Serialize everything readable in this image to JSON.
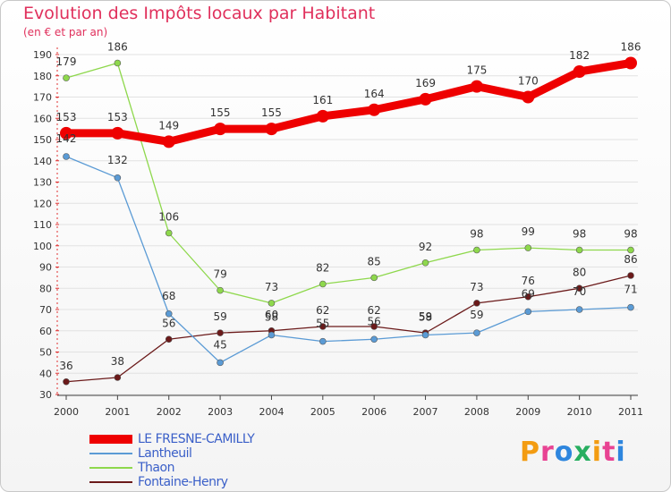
{
  "chart_data": {
    "type": "line",
    "title": "Evolution des Impôts locaux par Habitant",
    "subtitle": "(en € et par an)",
    "xlabel": "",
    "ylabel": "",
    "ylim": [
      30,
      190
    ],
    "yticks": [
      30,
      40,
      50,
      60,
      70,
      80,
      90,
      100,
      110,
      120,
      130,
      140,
      150,
      160,
      170,
      180,
      190
    ],
    "categories": [
      "2000",
      "2001",
      "2002",
      "2003",
      "2004",
      "2005",
      "2006",
      "2007",
      "2008",
      "2009",
      "2010",
      "2011"
    ],
    "series": [
      {
        "name": "LE FRESNE-CAMILLY",
        "color": "#ee0000",
        "values": [
          153,
          153,
          149,
          155,
          155,
          161,
          164,
          169,
          175,
          170,
          182,
          186
        ]
      },
      {
        "name": "Lantheuil",
        "color": "#5b9bd5",
        "values": [
          142,
          132,
          68,
          45,
          58,
          55,
          56,
          58,
          59,
          69,
          70,
          71
        ]
      },
      {
        "name": "Thaon",
        "color": "#8ed84c",
        "values": [
          179,
          186,
          106,
          79,
          73,
          82,
          85,
          92,
          98,
          99,
          98,
          98
        ]
      },
      {
        "name": "Fontaine-Henry",
        "color": "#6b1a1a",
        "values": [
          36,
          38,
          56,
          59,
          60,
          62,
          62,
          59,
          73,
          76,
          80,
          86
        ]
      }
    ],
    "legend": "bottom-left"
  },
  "logo": {
    "letters": [
      "P",
      "r",
      "o",
      "x",
      "i",
      "t",
      "i"
    ],
    "colors": [
      "#f39c12",
      "#e84393",
      "#2e86de",
      "#27ae60",
      "#f39c12",
      "#e84393",
      "#2e86de"
    ]
  }
}
